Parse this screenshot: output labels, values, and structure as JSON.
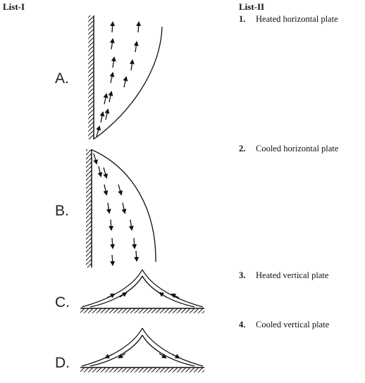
{
  "list1_heading": "List-I",
  "list2_heading": "List-II",
  "list1": [
    {
      "key": "A.",
      "figure": "flow rising along vertical plate"
    },
    {
      "key": "B.",
      "figure": "flow descending along vertical plate"
    },
    {
      "key": "C.",
      "figure": "flow converging on horizontal plate, rising plume"
    },
    {
      "key": "D.",
      "figure": "flow diverging from center over horizontal plate"
    }
  ],
  "list2": [
    {
      "num": "1.",
      "text": "Heated horizontal plate"
    },
    {
      "num": "2.",
      "text": "Cooled horizontal plate"
    },
    {
      "num": "3.",
      "text": "Heated vertical plate"
    },
    {
      "num": "4.",
      "text": "Cooled vertical plate"
    }
  ]
}
